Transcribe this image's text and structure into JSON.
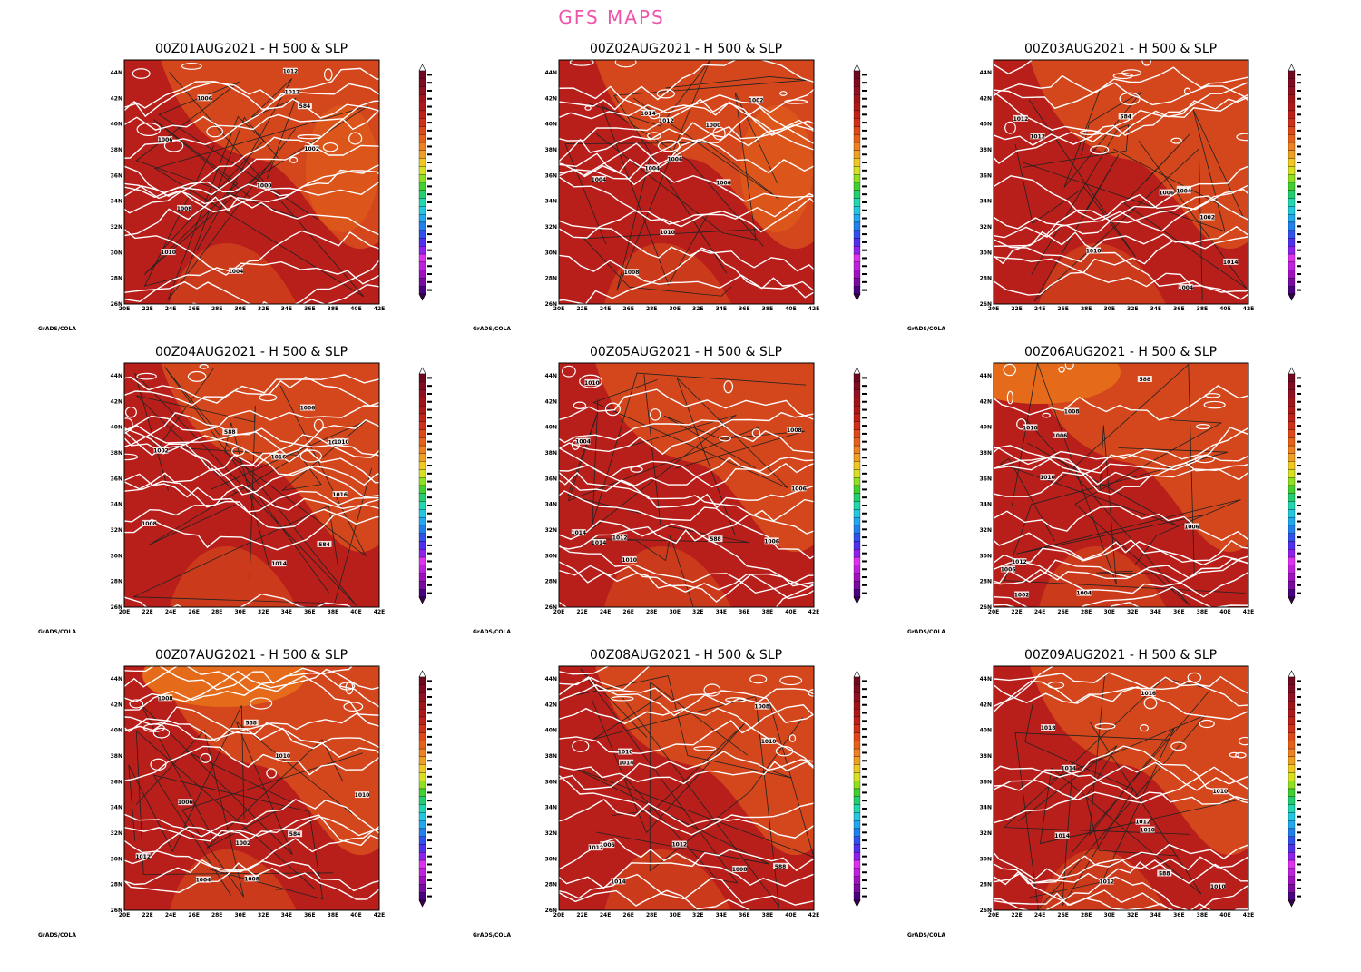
{
  "header": {
    "title": "GFS MAPS"
  },
  "axes": {
    "lon_labels": [
      "20E",
      "22E",
      "24E",
      "26E",
      "28E",
      "30E",
      "32E",
      "34E",
      "36E",
      "38E",
      "40E",
      "42E"
    ],
    "lat_labels": [
      "44N",
      "42N",
      "40N",
      "38N",
      "36N",
      "34N",
      "32N",
      "30N",
      "28N",
      "26N"
    ]
  },
  "credit": "GrADS/COLA",
  "panels": [
    {
      "title": "00Z01AUG2021 - H 500  & SLP",
      "contour_labels": [
        "1012",
        "584",
        "1010",
        "1012",
        "1008",
        "1006",
        "1004",
        "1000",
        "1002",
        "1006"
      ]
    },
    {
      "title": "00Z02AUG2021 - H 500  & SLP",
      "contour_labels": [
        "1008",
        "1010",
        "1012",
        "1014",
        "1004",
        "1006",
        "1000",
        "1002",
        "1004",
        "1006"
      ]
    },
    {
      "title": "00Z03AUG2021 - H 500  & SLP",
      "contour_labels": [
        "584",
        "1014",
        "1010",
        "1012",
        "1014",
        "1012",
        "1006",
        "1004",
        "1002",
        "1004"
      ]
    },
    {
      "title": "00Z04AUG2021 - H 500  & SLP",
      "contour_labels": [
        "1016",
        "584",
        "588",
        "1016",
        "1014",
        "1012",
        "1010",
        "1006",
        "1002",
        "1008"
      ]
    },
    {
      "title": "00Z05AUG2021 - H 500  & SLP",
      "contour_labels": [
        "1014",
        "588",
        "1014",
        "1012",
        "1010",
        "1006",
        "1004",
        "1008",
        "1010",
        "1006"
      ]
    },
    {
      "title": "00Z06AUG2021 - H 500  & SLP",
      "contour_labels": [
        "1006",
        "1008",
        "1010",
        "1012",
        "1006",
        "1004",
        "1002",
        "588",
        "1006",
        "1010"
      ]
    },
    {
      "title": "00Z07AUG2021 - H 500  & SLP",
      "contour_labels": [
        "1012",
        "1010",
        "1008",
        "1004",
        "584",
        "1002",
        "1006",
        "588",
        "1010",
        "1008"
      ]
    },
    {
      "title": "00Z08AUG2021 - H 500  & SLP",
      "contour_labels": [
        "1014",
        "1012",
        "1010",
        "1008",
        "588",
        "1006",
        "1010",
        "1014",
        "1012",
        "1008"
      ]
    },
    {
      "title": "00Z09AUG2021 - H 500  & SLP",
      "contour_labels": [
        "1018",
        "1016",
        "1014",
        "1012",
        "1010",
        "1012",
        "1014",
        "1010",
        "588",
        "1010"
      ]
    }
  ]
}
